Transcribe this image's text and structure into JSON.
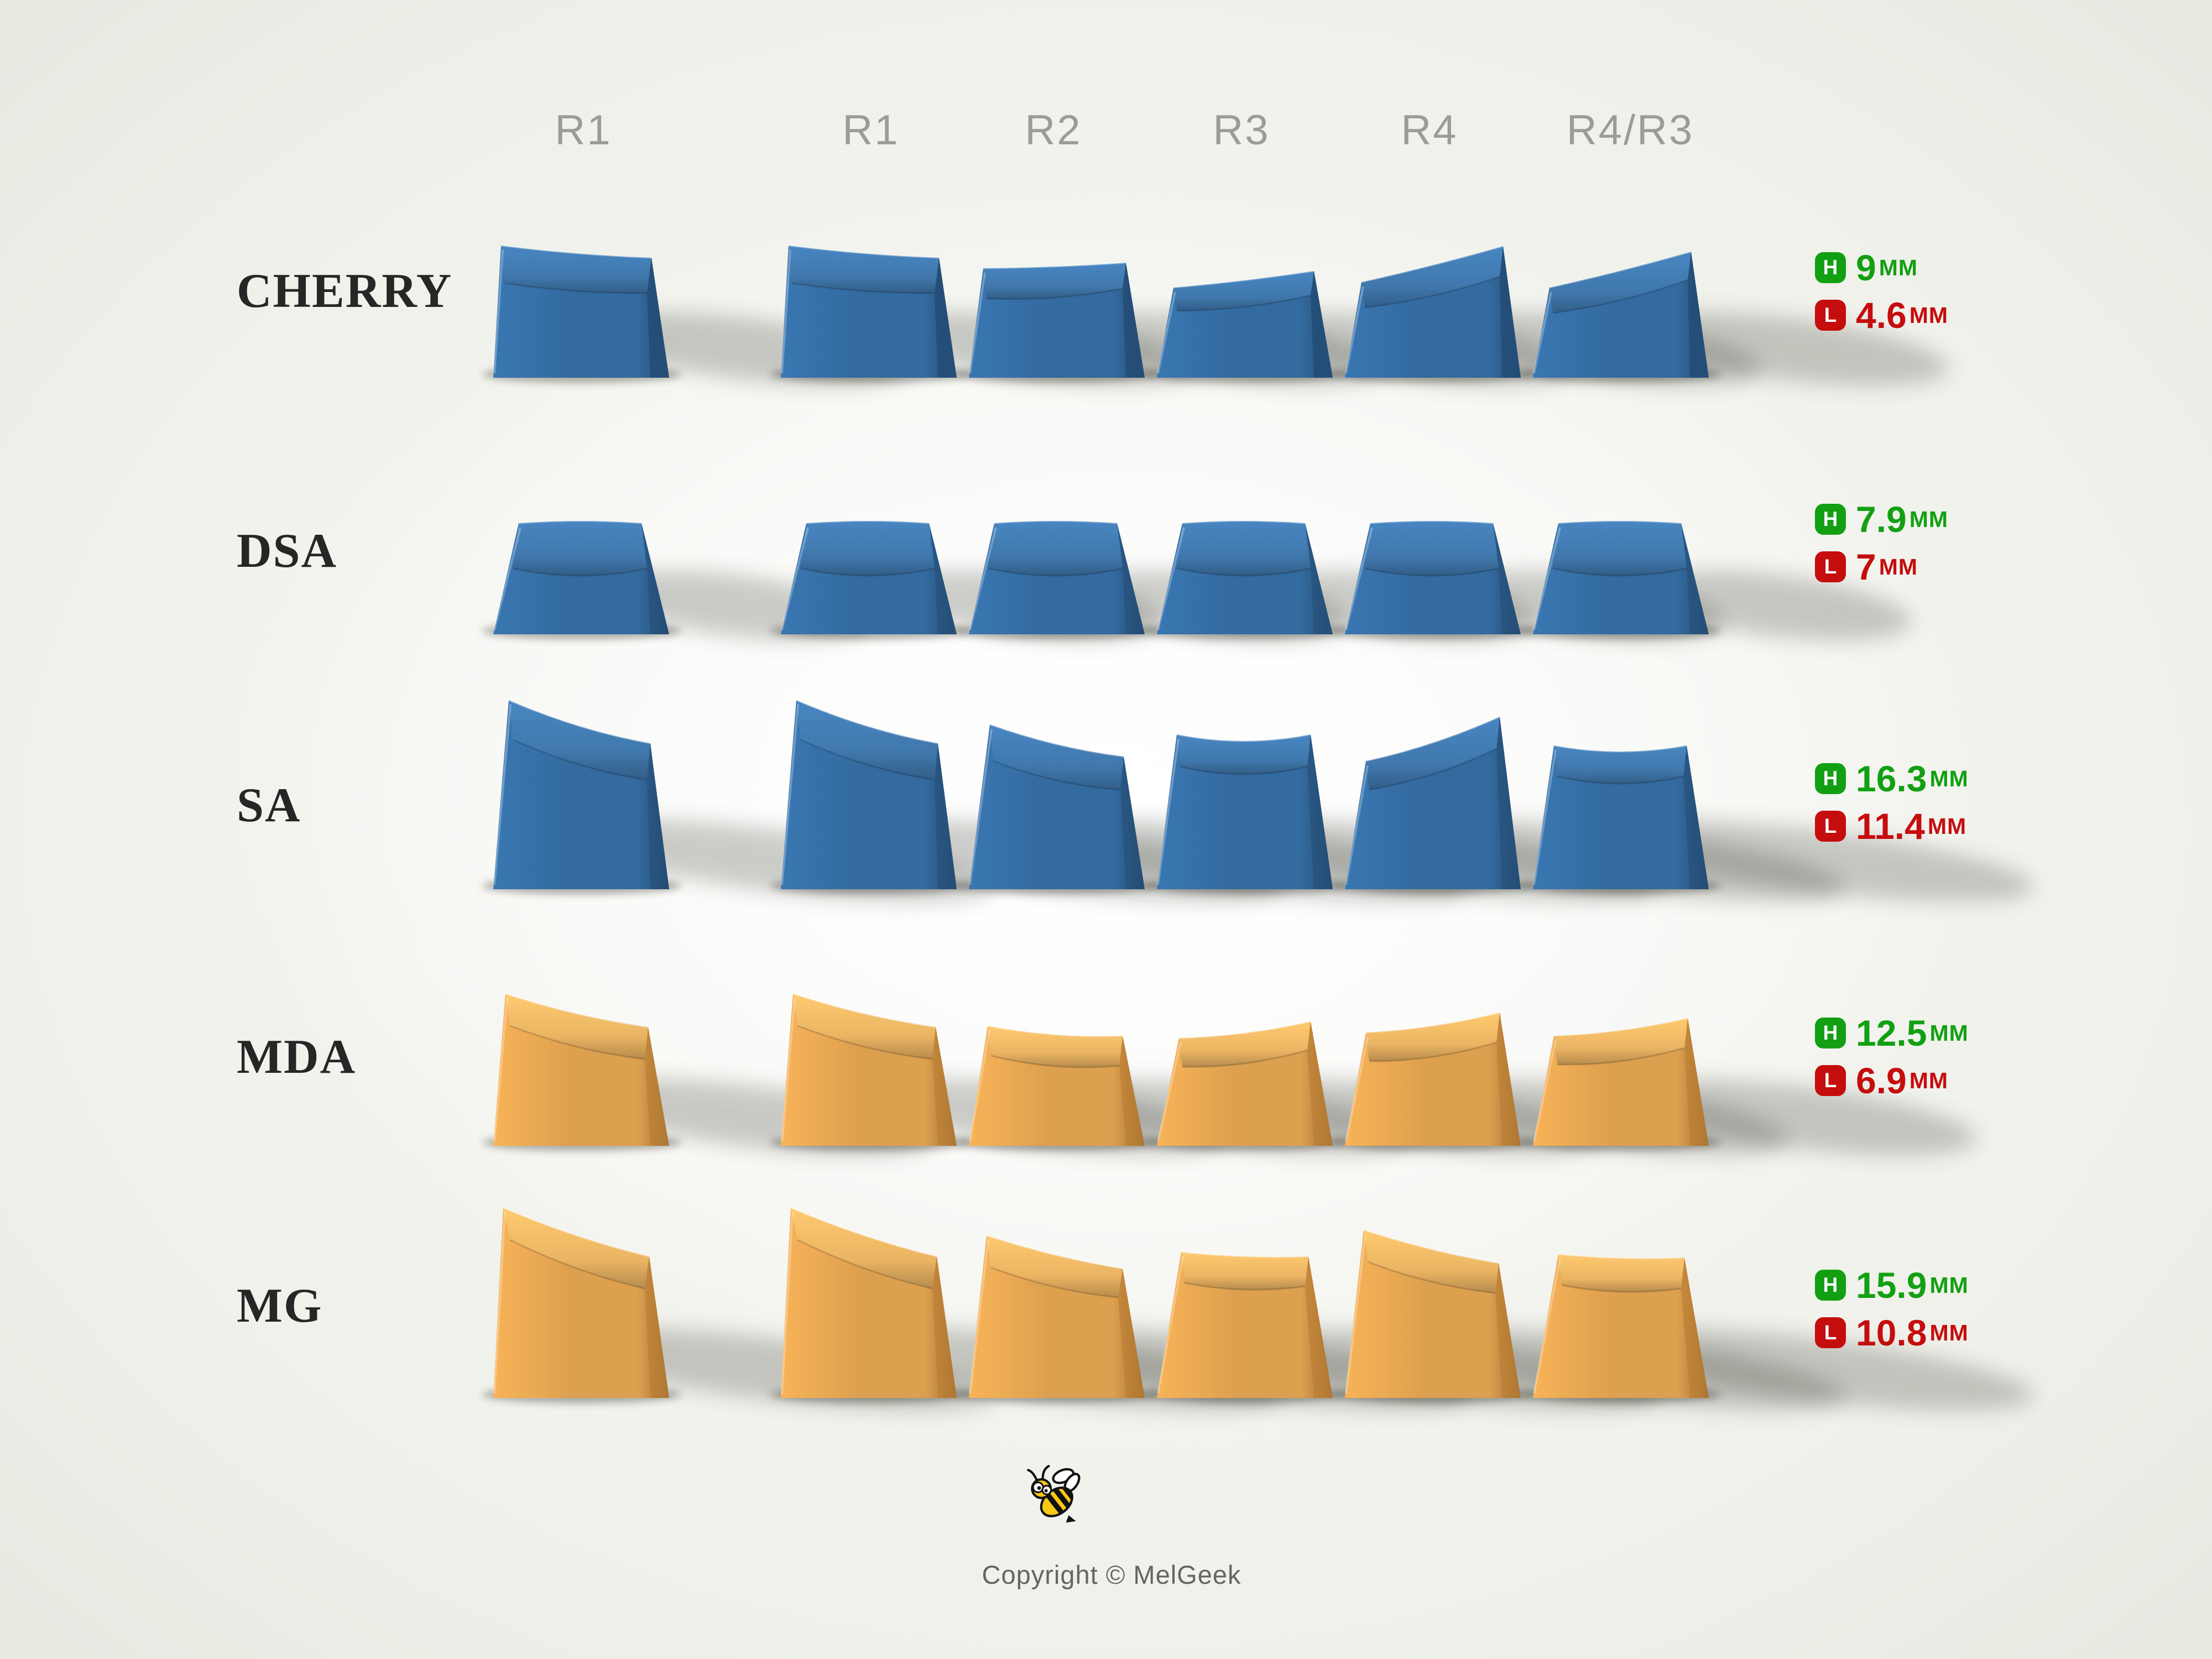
{
  "columns": [
    "R1",
    "R1",
    "R2",
    "R3",
    "R4",
    "R4/R3"
  ],
  "rows": [
    {
      "label": "CHERRY",
      "profile": "cherry",
      "keycap_color": "blue",
      "height": {
        "letter": "H",
        "value": "9",
        "unit": "MM"
      },
      "low": {
        "letter": "L",
        "value": "4.6",
        "unit": "MM"
      }
    },
    {
      "label": "DSA",
      "profile": "dsa",
      "keycap_color": "blue",
      "height": {
        "letter": "H",
        "value": "7.9",
        "unit": "MM"
      },
      "low": {
        "letter": "L",
        "value": "7",
        "unit": "MM"
      }
    },
    {
      "label": "SA",
      "profile": "sa",
      "keycap_color": "blue",
      "height": {
        "letter": "H",
        "value": "16.3",
        "unit": "MM"
      },
      "low": {
        "letter": "L",
        "value": "11.4",
        "unit": "MM"
      }
    },
    {
      "label": "MDA",
      "profile": "mda",
      "keycap_color": "orange",
      "height": {
        "letter": "H",
        "value": "12.5",
        "unit": "MM"
      },
      "low": {
        "letter": "L",
        "value": "6.9",
        "unit": "MM"
      }
    },
    {
      "label": "MG",
      "profile": "mg",
      "keycap_color": "orange",
      "height": {
        "letter": "H",
        "value": "15.9",
        "unit": "MM"
      },
      "low": {
        "letter": "L",
        "value": "10.8",
        "unit": "MM"
      }
    }
  ],
  "footer": {
    "copyright": "Copyright © MelGeek",
    "bee_icon": "bee-icon"
  },
  "colors": {
    "keycap_blue": "#336a9f",
    "keycap_blue_top": "#4078ad",
    "keycap_blue_side": "#244e77",
    "keycap_orange": "#dda04f",
    "keycap_orange_top": "#eab463",
    "keycap_orange_side": "#b97a2e",
    "measure_green": "#12a012",
    "measure_red": "#c50d0d",
    "header_gray": "#9b9b9b",
    "label_dark": "#262626"
  }
}
